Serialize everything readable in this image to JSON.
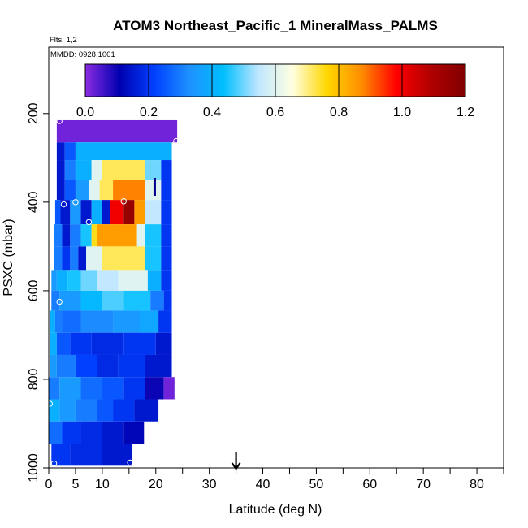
{
  "chart_data": {
    "type": "heatmap",
    "title": "ATOM3 Northeast_Pacific_1 MineralMass_PALMS",
    "subtitle_flights": "Flts: 1,2",
    "subtitle_dates": "MMDD: 0928,1001",
    "xlabel": "Latitude (deg N)",
    "ylabel": "PSXC (mbar)",
    "xlim": [
      0,
      85
    ],
    "ylim": [
      1000,
      50
    ],
    "y_reversed": true,
    "x_ticks": [
      0,
      5,
      10,
      20,
      30,
      40,
      50,
      60,
      70,
      80
    ],
    "x_minor_ticks": [
      15,
      25,
      35,
      45,
      55,
      65,
      75,
      85
    ],
    "y_ticks": [
      200,
      400,
      600,
      800,
      1000
    ],
    "colorbar": {
      "min": 0.0,
      "max": 1.2,
      "ticks": [
        0.0,
        0.2,
        0.4,
        0.6,
        0.8,
        1.0,
        1.2
      ],
      "tick_labels": [
        "0.0",
        "0.2",
        "0.4",
        "0.6",
        "0.8",
        "1.0",
        "1.2"
      ],
      "colors": [
        "#8a2be2",
        "#0000b0",
        "#0040ff",
        "#1e90ff",
        "#00bfff",
        "#bfe6ff",
        "#ffffe0",
        "#ffd700",
        "#ff8c00",
        "#ff0000",
        "#b00000",
        "#800000"
      ]
    },
    "arrows": [
      {
        "lat": 35,
        "position": "bottom",
        "color": "#000000"
      },
      {
        "lat": 19.8,
        "position": "top-of-data",
        "color": "#00008b"
      }
    ],
    "grid": false,
    "rows": [
      {
        "p_top": 215,
        "p_bot": 265,
        "segments": [
          [
            1.5,
            24,
            0.02
          ]
        ]
      },
      {
        "p_top": 265,
        "p_bot": 305,
        "segments": [
          [
            1.5,
            3,
            0.15
          ],
          [
            3,
            5,
            0.25
          ],
          [
            5,
            23,
            0.4
          ]
        ]
      },
      {
        "p_top": 305,
        "p_bot": 350,
        "segments": [
          [
            1.5,
            3,
            0.15
          ],
          [
            3,
            5,
            0.3
          ],
          [
            5,
            8,
            0.4
          ],
          [
            8,
            10,
            0.6
          ],
          [
            10,
            18,
            0.72
          ],
          [
            18,
            21,
            0.5
          ],
          [
            21,
            23,
            0.2
          ]
        ]
      },
      {
        "p_top": 350,
        "p_bot": 395,
        "segments": [
          [
            1.5,
            3,
            0.15
          ],
          [
            3,
            5,
            0.25
          ],
          [
            5,
            7.5,
            0.35
          ],
          [
            7.5,
            9.5,
            0.6
          ],
          [
            9.5,
            12,
            0.72
          ],
          [
            12,
            18,
            0.88
          ],
          [
            18,
            21,
            0.6
          ],
          [
            21,
            23,
            0.2
          ]
        ]
      },
      {
        "p_top": 395,
        "p_bot": 450,
        "segments": [
          [
            1.2,
            2.2,
            0.25
          ],
          [
            2.2,
            4,
            0.15
          ],
          [
            4,
            6,
            0.35
          ],
          [
            6,
            8,
            0.15
          ],
          [
            8,
            10,
            0.4
          ],
          [
            10,
            11.5,
            0.15
          ],
          [
            11.5,
            14,
            1.0
          ],
          [
            14,
            16,
            1.15
          ],
          [
            16,
            18,
            0.85
          ],
          [
            18,
            21,
            0.55
          ],
          [
            21,
            23,
            0.2
          ]
        ]
      },
      {
        "p_top": 450,
        "p_bot": 500,
        "segments": [
          [
            1,
            2.5,
            0.3
          ],
          [
            2.5,
            4,
            0.15
          ],
          [
            4,
            6,
            0.3
          ],
          [
            6,
            8,
            0.45
          ],
          [
            8,
            9,
            0.75
          ],
          [
            9,
            16.5,
            0.85
          ],
          [
            16.5,
            18,
            0.6
          ],
          [
            18,
            21,
            0.45
          ],
          [
            21,
            23,
            0.2
          ]
        ]
      },
      {
        "p_top": 500,
        "p_bot": 555,
        "segments": [
          [
            1,
            2.5,
            0.3
          ],
          [
            2.5,
            4,
            0.2
          ],
          [
            4,
            5.5,
            0.3
          ],
          [
            5.5,
            7,
            0.15
          ],
          [
            7,
            10,
            0.6
          ],
          [
            10,
            18,
            0.72
          ],
          [
            18,
            21,
            0.45
          ],
          [
            21,
            23,
            0.2
          ]
        ]
      },
      {
        "p_top": 555,
        "p_bot": 600,
        "segments": [
          [
            0.5,
            1.5,
            0.35
          ],
          [
            1.5,
            3.5,
            0.4
          ],
          [
            3.5,
            6,
            0.45
          ],
          [
            6,
            9,
            0.5
          ],
          [
            9,
            13,
            0.55
          ],
          [
            13,
            18.5,
            0.6
          ],
          [
            18.5,
            21,
            0.4
          ],
          [
            21,
            23,
            0.2
          ]
        ]
      },
      {
        "p_top": 600,
        "p_bot": 645,
        "segments": [
          [
            0.5,
            2,
            0.3
          ],
          [
            2,
            6,
            0.35
          ],
          [
            6,
            10,
            0.42
          ],
          [
            10,
            14,
            0.48
          ],
          [
            14,
            19,
            0.45
          ],
          [
            19,
            21.5,
            0.3
          ],
          [
            21.5,
            23,
            0.2
          ]
        ]
      },
      {
        "p_top": 645,
        "p_bot": 695,
        "segments": [
          [
            0.3,
            1.2,
            0.4
          ],
          [
            1.2,
            2.5,
            0.3
          ],
          [
            2.5,
            6,
            0.28
          ],
          [
            6,
            12,
            0.32
          ],
          [
            12,
            17,
            0.35
          ],
          [
            17,
            20.5,
            0.38
          ],
          [
            20.5,
            23,
            0.2
          ]
        ]
      },
      {
        "p_top": 695,
        "p_bot": 745,
        "segments": [
          [
            0.2,
            1.5,
            0.4
          ],
          [
            1.5,
            4,
            0.25
          ],
          [
            4,
            8,
            0.2
          ],
          [
            8,
            14,
            0.18
          ],
          [
            14,
            20,
            0.2
          ],
          [
            20,
            23,
            0.15
          ]
        ]
      },
      {
        "p_top": 745,
        "p_bot": 795,
        "segments": [
          [
            0.2,
            1.5,
            0.35
          ],
          [
            1.5,
            5,
            0.3
          ],
          [
            5,
            9,
            0.22
          ],
          [
            9,
            13,
            0.18
          ],
          [
            13,
            18,
            0.2
          ],
          [
            18,
            23,
            0.15
          ]
        ]
      },
      {
        "p_top": 795,
        "p_bot": 845,
        "segments": [
          [
            0,
            2,
            0.3
          ],
          [
            2,
            6,
            0.35
          ],
          [
            6,
            10,
            0.28
          ],
          [
            10,
            14,
            0.25
          ],
          [
            14,
            18,
            0.2
          ],
          [
            18,
            21.5,
            0.1
          ],
          [
            21.5,
            23.5,
            0.02
          ]
        ]
      },
      {
        "p_top": 845,
        "p_bot": 895,
        "segments": [
          [
            0,
            2,
            0.4
          ],
          [
            2,
            5,
            0.35
          ],
          [
            5,
            9,
            0.3
          ],
          [
            9,
            12,
            0.25
          ],
          [
            12,
            16,
            0.2
          ],
          [
            16,
            20.5,
            0.15
          ]
        ]
      },
      {
        "p_top": 895,
        "p_bot": 945,
        "segments": [
          [
            0,
            2.5,
            0.28
          ],
          [
            2.5,
            6,
            0.2
          ],
          [
            6,
            10,
            0.18
          ],
          [
            10,
            14,
            0.15
          ],
          [
            14,
            17.8,
            0.12
          ]
        ]
      },
      {
        "p_top": 945,
        "p_bot": 995,
        "segments": [
          [
            0.5,
            4,
            0.2
          ],
          [
            4,
            10,
            0.18
          ],
          [
            10,
            15.5,
            0.15
          ]
        ]
      }
    ],
    "sample_points": [
      {
        "lat": 2,
        "p": 217
      },
      {
        "lat": 19.5,
        "p": 197
      },
      {
        "lat": 23.8,
        "p": 262
      },
      {
        "lat": 2.8,
        "p": 405
      },
      {
        "lat": 5,
        "p": 400
      },
      {
        "lat": 14,
        "p": 398
      },
      {
        "lat": 7.5,
        "p": 445
      },
      {
        "lat": 2,
        "p": 625
      },
      {
        "lat": 0.2,
        "p": 855
      },
      {
        "lat": 23.5,
        "p": 855
      },
      {
        "lat": 1,
        "p": 990
      },
      {
        "lat": 15.2,
        "p": 988
      }
    ]
  }
}
